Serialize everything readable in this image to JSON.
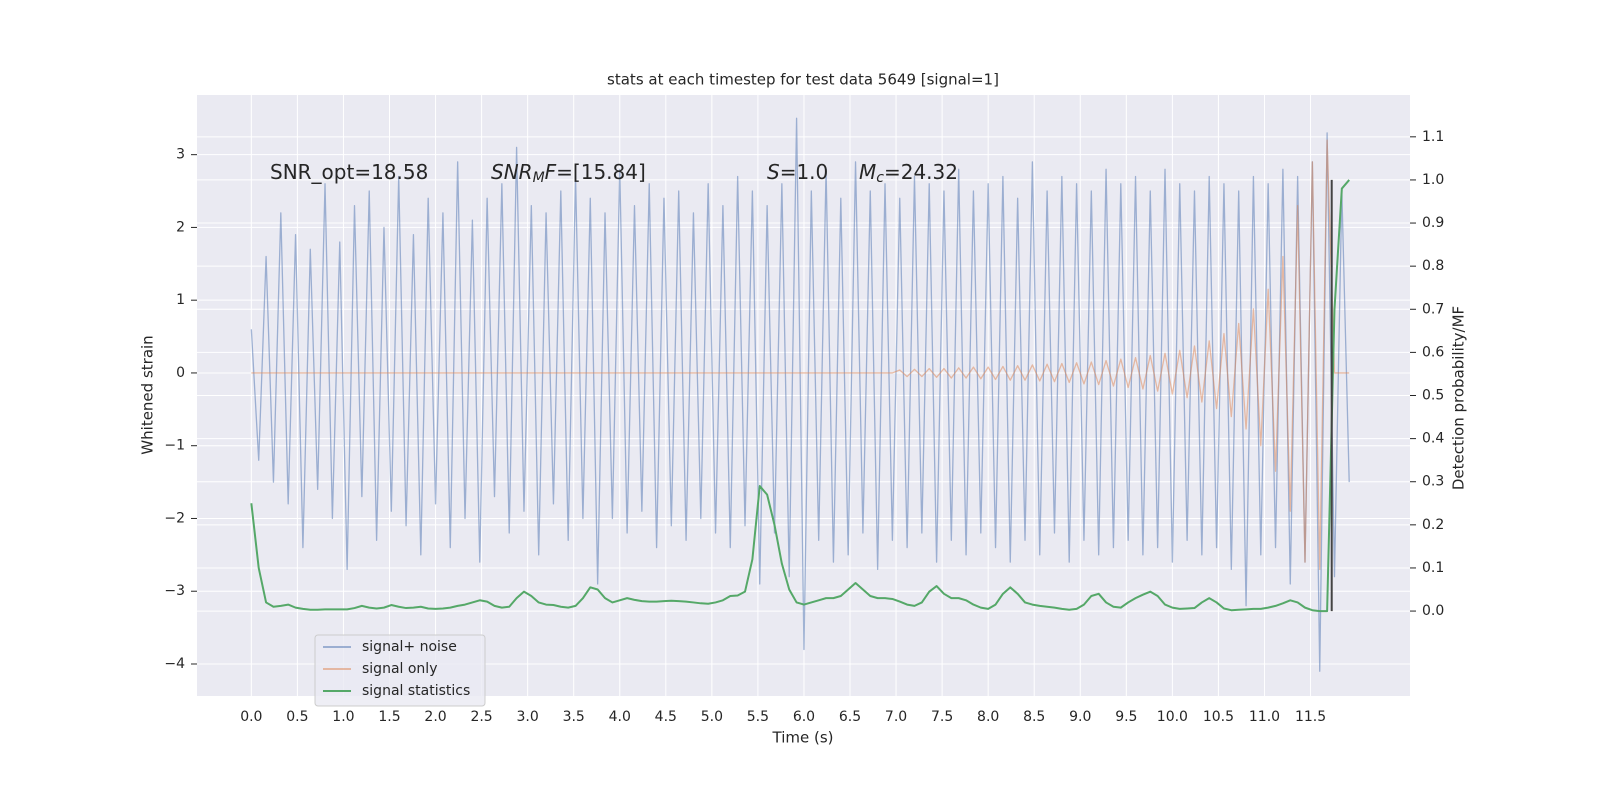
{
  "chart_data": {
    "type": "line",
    "title": "stats at each timestep for test data 5649 [signal=1]",
    "xlabel": "Time (s)",
    "ylabel": "Whitened strain",
    "y2label": "Detection probability/MF",
    "xlim": [
      -0.59,
      12.58
    ],
    "ylim": [
      -4.44,
      3.82
    ],
    "y2lim": [
      -0.197,
      1.197
    ],
    "xticks": [
      {
        "value": 0,
        "label": "0.0"
      },
      0.5,
      {
        "value": 1,
        "label": "1.0"
      },
      1.5,
      {
        "value": 2,
        "label": "2.0"
      },
      2.5,
      {
        "value": 3,
        "label": "3.0"
      },
      3.5,
      {
        "value": 4,
        "label": "4.0"
      },
      4.5,
      {
        "value": 5,
        "label": "5.0"
      },
      5.5,
      {
        "value": 6,
        "label": "6.0"
      },
      6.5,
      {
        "value": 7,
        "label": "7.0"
      },
      7.5,
      {
        "value": 8,
        "label": "8.0"
      },
      8.5,
      {
        "value": 9,
        "label": "9.0"
      },
      9.5,
      {
        "value": 10,
        "label": "10.0"
      },
      10.5,
      {
        "value": 11,
        "label": "11.0"
      },
      11.5
    ],
    "yticks": [
      {
        "value": -4,
        "label": "−4"
      },
      {
        "value": -3,
        "label": "−3"
      },
      {
        "value": -2,
        "label": "−2"
      },
      {
        "value": -1,
        "label": "−1"
      },
      0,
      1,
      2,
      3
    ],
    "y2ticks": [
      {
        "value": 0,
        "label": "0.0"
      },
      0.1,
      0.2,
      0.3,
      0.4,
      0.5,
      0.6,
      0.7,
      0.8,
      0.9,
      {
        "value": 1,
        "label": "1.0"
      },
      1.1
    ],
    "grid": true,
    "legend": "lower left",
    "annotations": [
      {
        "parts": [
          {
            "text": "SNR_opt=18.58"
          }
        ]
      },
      {
        "parts": [
          {
            "text": "SNR",
            "style": "italic"
          },
          {
            "text": "M",
            "style": "sub"
          },
          {
            "text": "F",
            "style": "italic"
          },
          {
            "text": "=[15.84]"
          }
        ]
      },
      {
        "parts": [
          {
            "text": "S",
            "style": "italic"
          },
          {
            "text": "=1.0"
          }
        ]
      },
      {
        "parts": [
          {
            "text": "M",
            "style": "italic"
          },
          {
            "text": "c",
            "style": "sub"
          },
          {
            "text": "=24.32"
          }
        ]
      }
    ],
    "vlines": [
      {
        "x": 11.73,
        "y2": [
          0,
          1
        ],
        "color": "#444444"
      }
    ],
    "x": [
      0,
      0.08,
      0.16,
      0.24,
      0.32,
      0.4,
      0.48,
      0.56,
      0.64,
      0.72,
      0.8,
      0.88,
      0.96,
      1.04,
      1.12,
      1.2,
      1.28,
      1.36,
      1.44,
      1.52,
      1.6,
      1.68,
      1.76,
      1.84,
      1.92,
      2,
      2.08,
      2.16,
      2.24,
      2.32,
      2.4,
      2.48,
      2.56,
      2.64,
      2.72,
      2.8,
      2.88,
      2.96,
      3.04,
      3.12,
      3.2,
      3.28,
      3.36,
      3.44,
      3.52,
      3.6,
      3.68,
      3.76,
      3.84,
      3.92,
      4,
      4.08,
      4.16,
      4.24,
      4.32,
      4.4,
      4.48,
      4.56,
      4.64,
      4.72,
      4.8,
      4.88,
      4.96,
      5.04,
      5.12,
      5.2,
      5.28,
      5.36,
      5.44,
      5.52,
      5.6,
      5.68,
      5.76,
      5.84,
      5.92,
      6,
      6.08,
      6.16,
      6.24,
      6.32,
      6.4,
      6.48,
      6.56,
      6.64,
      6.72,
      6.8,
      6.88,
      6.96,
      7.04,
      7.12,
      7.2,
      7.28,
      7.36,
      7.44,
      7.52,
      7.6,
      7.68,
      7.76,
      7.84,
      7.92,
      8,
      8.08,
      8.16,
      8.24,
      8.32,
      8.4,
      8.48,
      8.56,
      8.64,
      8.72,
      8.8,
      8.88,
      8.96,
      9.04,
      9.12,
      9.2,
      9.28,
      9.36,
      9.44,
      9.52,
      9.6,
      9.68,
      9.76,
      9.84,
      9.92,
      10,
      10.08,
      10.16,
      10.24,
      10.32,
      10.4,
      10.48,
      10.56,
      10.64,
      10.72,
      10.8,
      10.88,
      10.96,
      11.04,
      11.12,
      11.2,
      11.28,
      11.36,
      11.44,
      11.52,
      11.6,
      11.68,
      11.76,
      11.84,
      11.92
    ],
    "series": [
      {
        "name": "signal+ noise",
        "color": "#4c72b0",
        "opacity": 0.5,
        "values": [
          0.6,
          -1.2,
          1.6,
          -1.5,
          2.2,
          -1.8,
          1.9,
          -2.4,
          1.7,
          -1.6,
          2.6,
          -2.0,
          1.8,
          -2.7,
          2.3,
          -1.7,
          2.5,
          -2.3,
          2.0,
          -1.9,
          2.7,
          -2.1,
          1.9,
          -2.5,
          2.4,
          -1.8,
          2.2,
          -2.4,
          2.9,
          -2.0,
          2.1,
          -2.6,
          2.4,
          -1.7,
          2.6,
          -2.2,
          3.1,
          -1.9,
          2.3,
          -2.5,
          2.2,
          -1.8,
          2.5,
          -2.3,
          2.7,
          -2.0,
          2.4,
          -2.9,
          2.2,
          -2.0,
          2.8,
          -2.2,
          2.3,
          -1.9,
          2.6,
          -2.4,
          2.4,
          -2.1,
          2.5,
          -2.3,
          2.2,
          -2.0,
          2.6,
          -2.2,
          2.3,
          -2.4,
          2.7,
          -2.1,
          2.5,
          -2.9,
          2.3,
          -2.2,
          2.6,
          -2.8,
          3.5,
          -3.8,
          2.5,
          -2.3,
          2.8,
          -2.6,
          2.4,
          -2.5,
          2.9,
          -2.2,
          2.5,
          -2.7,
          2.6,
          -2.3,
          2.4,
          -2.4,
          2.7,
          -2.2,
          2.6,
          -2.6,
          2.5,
          -2.3,
          2.8,
          -2.5,
          2.5,
          -2.2,
          2.6,
          -2.4,
          2.7,
          -2.6,
          2.4,
          -2.3,
          2.9,
          -2.5,
          2.5,
          -2.2,
          2.7,
          -2.6,
          2.6,
          -2.3,
          2.5,
          -2.5,
          2.8,
          -2.4,
          2.6,
          -2.3,
          2.7,
          -2.5,
          2.5,
          -2.4,
          2.8,
          -2.6,
          2.6,
          -2.3,
          2.5,
          -2.5,
          2.7,
          -2.4,
          2.6,
          -2.7,
          2.5,
          -3.2,
          2.7,
          -2.5,
          2.6,
          -2.4,
          2.8,
          -2.9,
          2.7,
          -2.6,
          2.9,
          -4.1,
          3.3,
          -2.8,
          2.5,
          -1.5
        ]
      },
      {
        "name": "signal only",
        "color": "#dd8452",
        "opacity": 0.5,
        "values": [
          0,
          0,
          0,
          0,
          0,
          0,
          0,
          0,
          0,
          0,
          0,
          0,
          0,
          0,
          0,
          0,
          0,
          0,
          0,
          0,
          0,
          0,
          0,
          0,
          0,
          0,
          0,
          0,
          0,
          0,
          0,
          0,
          0,
          0,
          0,
          0,
          0,
          0,
          0,
          0,
          0,
          0,
          0,
          0,
          0,
          0,
          0,
          0,
          0,
          0,
          0,
          0,
          0,
          0,
          0,
          0,
          0,
          0,
          0,
          0,
          0,
          0,
          0,
          0,
          0,
          0,
          0,
          0,
          0,
          0,
          0,
          0,
          0,
          0,
          0,
          0,
          0,
          0,
          0,
          0,
          0,
          0,
          0,
          0,
          0,
          0,
          0,
          0,
          0.04,
          -0.05,
          0.05,
          -0.05,
          0.06,
          -0.06,
          0.06,
          -0.07,
          0.07,
          -0.07,
          0.08,
          -0.08,
          0.08,
          -0.09,
          0.09,
          -0.1,
          0.1,
          -0.1,
          0.11,
          -0.11,
          0.12,
          -0.12,
          0.13,
          -0.13,
          0.14,
          -0.15,
          0.15,
          -0.16,
          0.17,
          -0.18,
          0.19,
          -0.2,
          0.21,
          -0.22,
          0.24,
          -0.25,
          0.27,
          -0.29,
          0.31,
          -0.34,
          0.37,
          -0.4,
          0.44,
          -0.49,
          0.54,
          -0.6,
          0.68,
          -0.77,
          0.88,
          -1.0,
          1.15,
          -1.35,
          1.6,
          -1.9,
          2.3,
          -2.6,
          2.9,
          -2.7,
          3.2,
          0,
          0,
          0
        ]
      },
      {
        "name": "signal statistics",
        "color": "#55a868",
        "opacity": 1,
        "axis": "y2",
        "values": [
          0.25,
          0.1,
          0.02,
          0.01,
          0.012,
          0.015,
          0.008,
          0.005,
          0.003,
          0.003,
          0.004,
          0.004,
          0.004,
          0.004,
          0.007,
          0.012,
          0.008,
          0.006,
          0.008,
          0.014,
          0.01,
          0.007,
          0.008,
          0.01,
          0.006,
          0.005,
          0.006,
          0.008,
          0.012,
          0.015,
          0.02,
          0.025,
          0.022,
          0.012,
          0.008,
          0.01,
          0.03,
          0.045,
          0.035,
          0.02,
          0.015,
          0.014,
          0.01,
          0.008,
          0.012,
          0.03,
          0.055,
          0.05,
          0.03,
          0.02,
          0.025,
          0.03,
          0.026,
          0.023,
          0.022,
          0.022,
          0.023,
          0.024,
          0.023,
          0.022,
          0.02,
          0.018,
          0.017,
          0.02,
          0.025,
          0.035,
          0.036,
          0.045,
          0.12,
          0.29,
          0.27,
          0.2,
          0.11,
          0.05,
          0.02,
          0.015,
          0.02,
          0.025,
          0.03,
          0.03,
          0.035,
          0.05,
          0.065,
          0.05,
          0.035,
          0.03,
          0.03,
          0.028,
          0.022,
          0.015,
          0.012,
          0.02,
          0.045,
          0.058,
          0.04,
          0.03,
          0.03,
          0.025,
          0.015,
          0.008,
          0.005,
          0.015,
          0.04,
          0.055,
          0.04,
          0.02,
          0.015,
          0.012,
          0.01,
          0.008,
          0.005,
          0.003,
          0.005,
          0.015,
          0.035,
          0.04,
          0.02,
          0.01,
          0.008,
          0.02,
          0.03,
          0.038,
          0.045,
          0.035,
          0.015,
          0.008,
          0.005,
          0.006,
          0.007,
          0.02,
          0.03,
          0.02,
          0.006,
          0.002,
          0.003,
          0.004,
          0.005,
          0.005,
          0.008,
          0.012,
          0.018,
          0.025,
          0.02,
          0.008,
          0.002,
          0,
          0,
          0.7,
          0.98,
          1.0
        ]
      }
    ]
  }
}
